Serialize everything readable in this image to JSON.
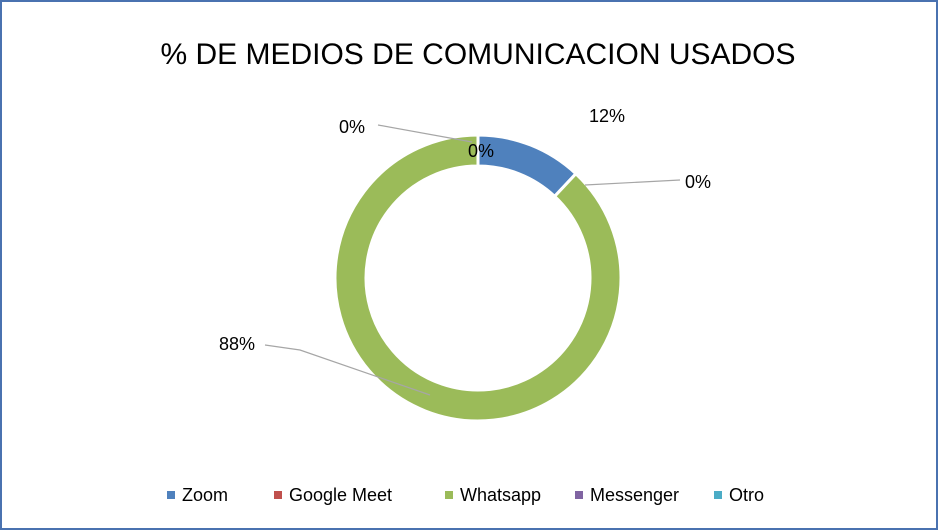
{
  "chart_data": {
    "type": "donut",
    "title": "% DE MEDIOS DE COMUNICACION USADOS",
    "categories": [
      "Zoom",
      "Google Meet",
      "Whatsapp",
      "Messenger",
      "Otro"
    ],
    "values": [
      12,
      0,
      88,
      0,
      0
    ],
    "value_labels": [
      "12%",
      "0%",
      "88%",
      "0%",
      "0%"
    ],
    "colors": [
      "#4f81bd",
      "#c0504d",
      "#9bbb59",
      "#8064a2",
      "#4bacc6"
    ],
    "legend": "bottom"
  }
}
